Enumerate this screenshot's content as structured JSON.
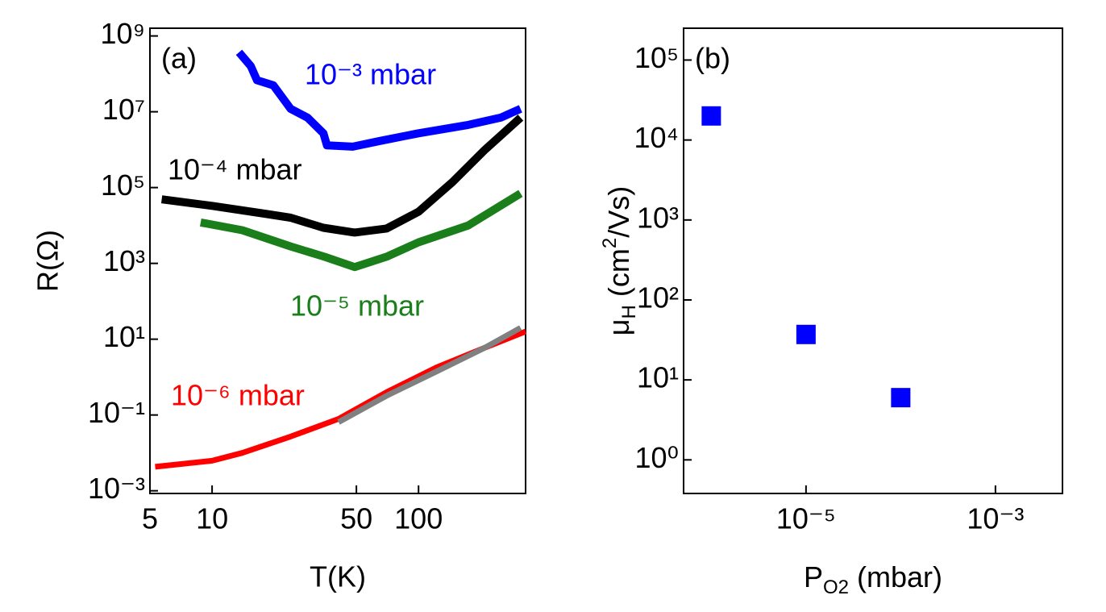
{
  "chart_data": [
    {
      "type": "line",
      "title": "(a)",
      "xlabel": "T(K)",
      "ylabel": "R(Ω)",
      "xscale": "log",
      "yscale": "log",
      "xlim": [
        5,
        330
      ],
      "ylim": [
        0.00085,
        1600000000.0
      ],
      "xticks": [
        5,
        10,
        50,
        100
      ],
      "yticks": [
        {
          "value": 0.001,
          "label": "10⁻³"
        },
        {
          "value": 0.1,
          "label": "10⁻¹"
        },
        {
          "value": 10,
          "label": "10¹"
        },
        {
          "value": 1000,
          "label": "10³"
        },
        {
          "value": 100000,
          "label": "10⁵"
        },
        {
          "value": 10000000,
          "label": "10⁷"
        },
        {
          "value": 1000000000,
          "label": "10⁹"
        }
      ],
      "series": [
        {
          "name": "10⁻³ mbar",
          "color": "#0000ff",
          "x": [
            13.5,
            15.4,
            16.5,
            19.8,
            24,
            29,
            34.6,
            36,
            48,
            65,
            100,
            174,
            250,
            312
          ],
          "values": [
            370000000.0,
            160000000.0,
            68000000.0,
            50000000.0,
            12000000.0,
            7000000.0,
            2700000.0,
            1300000.0,
            1200000.0,
            1700000.0,
            2700000.0,
            4500000.0,
            7000000.0,
            12000000.0
          ]
        },
        {
          "name": "10⁻⁴ mbar",
          "color": "#000000",
          "x": [
            5.7,
            10,
            18.5,
            24,
            34.6,
            49,
            70,
            100,
            146,
            210,
            312
          ],
          "values": [
            49000,
            33000,
            20000,
            16000,
            8700,
            6500,
            8300,
            23000,
            140000,
            1000000,
            7000000
          ]
        },
        {
          "name": "10⁻⁵ mbar",
          "color": "#1a7f1a",
          "x": [
            8.8,
            14,
            24,
            35,
            49,
            70,
            100,
            174,
            312
          ],
          "values": [
            12000,
            7500,
            2800,
            1500,
            800,
            1500,
            3600,
            10000,
            70000
          ]
        },
        {
          "name": "10⁻⁶ mbar",
          "color": "#ff0000",
          "x": [
            5.3,
            10,
            14,
            24,
            41,
            70,
            122,
            210,
            330
          ],
          "values": [
            0.0043,
            0.0062,
            0.01,
            0.027,
            0.079,
            0.4,
            1.8,
            6,
            16
          ]
        },
        {
          "color": "#808080",
          "x": [
            41,
            70,
            122,
            210,
            312
          ],
          "values": [
            0.065,
            0.32,
            1.4,
            6,
            20
          ]
        }
      ]
    },
    {
      "type": "scatter",
      "title": "(b)",
      "xlabel": [
        "P",
        "O2",
        " (mbar)"
      ],
      "ylabel": [
        "μ",
        "H",
        " (cm",
        "2",
        "/Vs)"
      ],
      "xscale": "log",
      "yscale": "log",
      "xlim": [
        5.1e-07,
        0.0051
      ],
      "ylim": [
        0.38,
        250000.0
      ],
      "xticks": [
        {
          "value": 1e-05,
          "label": "10⁻⁵"
        },
        {
          "value": 0.001,
          "label": "10⁻³"
        }
      ],
      "yticks": [
        {
          "value": 1,
          "label": "10⁰"
        },
        {
          "value": 10,
          "label": "10¹"
        },
        {
          "value": 100,
          "label": "10²"
        },
        {
          "value": 1000,
          "label": "10³"
        },
        {
          "value": 10000,
          "label": "10⁴"
        },
        {
          "value": 100000,
          "label": "10⁵"
        }
      ],
      "series": [
        {
          "color": "#0000ff",
          "x": [
            1e-06,
            1e-05,
            0.0001
          ],
          "values": [
            20000,
            37,
            6
          ]
        }
      ]
    }
  ]
}
